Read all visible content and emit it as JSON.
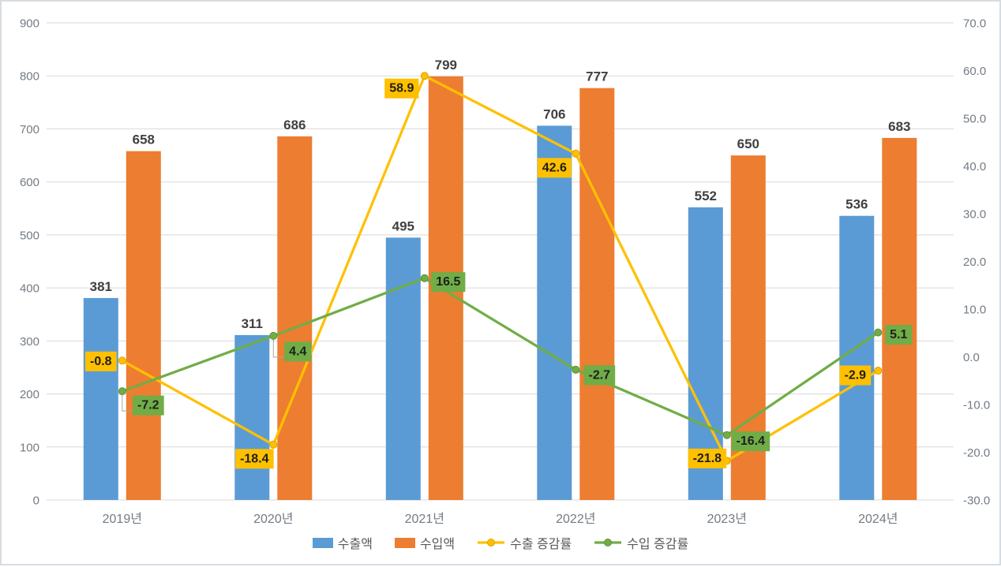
{
  "window": {
    "background": "#FFFFFF",
    "border_color": "#D7DBE2"
  },
  "colors": {
    "grid": "#D9D9D9",
    "tick_text": "#737B85",
    "x_label_text": "#737B85",
    "bar_label_text": "#404040",
    "line_label_text": "#1F1F1F",
    "legend_text": "#595959",
    "leader_line": "#A6A6A6",
    "export_bar": "#5B9BD5",
    "import_bar": "#ED7D31",
    "export_growth_line": "#FFC000",
    "import_growth_line": "#70AD47"
  },
  "chart_data": {
    "type": "combo-bar-line",
    "categories": [
      "2019년",
      "2020년",
      "2021년",
      "2022년",
      "2023년",
      "2024년"
    ],
    "series": [
      {
        "id": "export-amount",
        "name": "수출액",
        "chart": "bar",
        "axis": "left",
        "color": "#5B9BD5",
        "values": [
          381,
          311,
          495,
          706,
          552,
          536
        ],
        "labels": [
          "381",
          "311",
          "495",
          "706",
          "552",
          "536"
        ]
      },
      {
        "id": "import-amount",
        "name": "수입액",
        "chart": "bar",
        "axis": "left",
        "color": "#ED7D31",
        "values": [
          658,
          686,
          799,
          777,
          650,
          683
        ],
        "labels": [
          "658",
          "686",
          "799",
          "777",
          "650",
          "683"
        ]
      },
      {
        "id": "export-growth-rate",
        "name": "수출 증감률",
        "chart": "line",
        "axis": "right",
        "color": "#FFC000",
        "marker_stroke": "#D9A300",
        "values": [
          -0.8,
          -18.4,
          58.9,
          42.6,
          -21.8,
          -2.9
        ],
        "labels": [
          "-0.8",
          "-18.4",
          "58.9",
          "42.6",
          "-21.8",
          "-2.9"
        ],
        "label_offsets": [
          [
            -27,
            0
          ],
          [
            -24,
            17
          ],
          [
            -29,
            15
          ],
          [
            -27,
            17
          ],
          [
            -25,
            -4
          ],
          [
            -29,
            5
          ]
        ],
        "leader_indices": []
      },
      {
        "id": "import-growth-rate",
        "name": "수입 증감률",
        "chart": "line",
        "axis": "right",
        "color": "#70AD47",
        "marker_stroke": "#5E9138",
        "values": [
          -7.2,
          4.4,
          16.5,
          -2.7,
          -16.4,
          5.1
        ],
        "labels": [
          "-7.2",
          "4.4",
          "16.5",
          "-2.7",
          "-16.4",
          "5.1"
        ],
        "label_offsets": [
          [
            33,
            17
          ],
          [
            31,
            19
          ],
          [
            30,
            4
          ],
          [
            30,
            6
          ],
          [
            30,
            7
          ],
          [
            26,
            2
          ]
        ],
        "leader_indices": [
          0,
          1
        ]
      }
    ],
    "left_axis": {
      "min": 0,
      "max": 900,
      "step": 100,
      "tick_labels": [
        "0",
        "100",
        "200",
        "300",
        "400",
        "500",
        "600",
        "700",
        "800",
        "900"
      ]
    },
    "right_axis": {
      "min": -30,
      "max": 70,
      "step": 10,
      "tick_labels": [
        "-30.0",
        "-20.0",
        "-10.0",
        "0.0",
        "10.0",
        "20.0",
        "30.0",
        "40.0",
        "50.0",
        "60.0",
        "70.0"
      ]
    },
    "grid": true,
    "legend_position": "bottom"
  }
}
